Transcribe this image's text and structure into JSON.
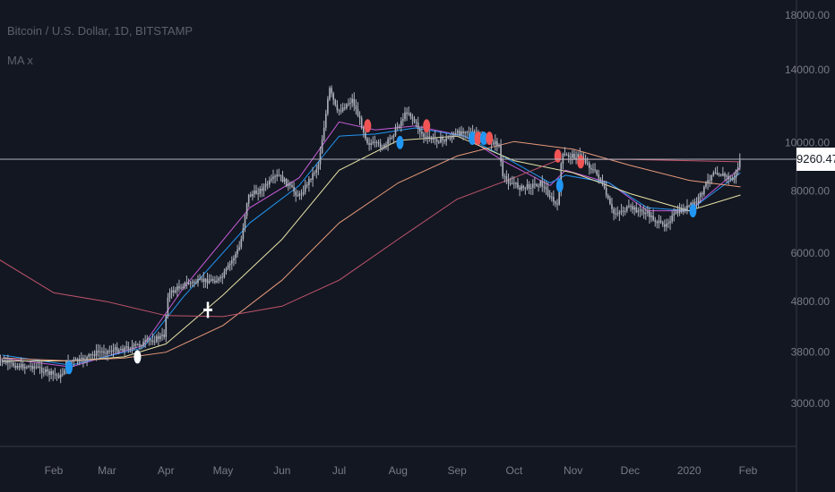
{
  "header": {
    "symbol": "Bitcoin / U.S. Dollar, 1D, BITSTAMP",
    "indicator": "MA x"
  },
  "current_price_label": "9260.47",
  "colors": {
    "background": "#131722",
    "candles": "#aeb2bd",
    "ma_fast": "#c45bd6",
    "ma_blue": "#2196f3",
    "ma_yellow": "#e6e2a5",
    "ma_orange": "#e89a7a",
    "ma_red": "#c0556c",
    "marker_red": "#f05454",
    "marker_blue": "#2196f3",
    "marker_white": "#ffffff",
    "price_line": "#b2b5be"
  },
  "chart_data": {
    "type": "line",
    "title": "Bitcoin / U.S. Dollar, 1D, BITSTAMP",
    "y_scale": "log",
    "ylim": [
      2400,
      21000
    ],
    "grid": false,
    "y_ticks": [
      "3000.00",
      "3800.00",
      "4800.00",
      "6000.00",
      "8000.00",
      "10000.00",
      "14000.00",
      "18000.00"
    ],
    "x_ticks": [
      "Feb",
      "Mar",
      "Apr",
      "May",
      "Jun",
      "Jul",
      "Aug",
      "Sep",
      "Oct",
      "Nov",
      "Dec",
      "2020",
      "Feb"
    ],
    "x_tick_dates": [
      "2019-02-01",
      "2019-03-01",
      "2019-04-01",
      "2019-05-01",
      "2019-06-01",
      "2019-07-01",
      "2019-08-01",
      "2019-09-01",
      "2019-10-01",
      "2019-11-01",
      "2019-12-01",
      "2020-01-01",
      "2020-02-01"
    ],
    "current_price": 9260.47,
    "price_series": {
      "name": "",
      "x": [
        "2019-01-01",
        "2019-01-08",
        "2019-01-15",
        "2019-01-22",
        "2019-01-29",
        "2019-02-05",
        "2019-02-08",
        "2019-02-15",
        "2019-02-24",
        "2019-03-01",
        "2019-03-15",
        "2019-03-31",
        "2019-04-02",
        "2019-04-10",
        "2019-04-20",
        "2019-04-30",
        "2019-05-10",
        "2019-05-14",
        "2019-05-20",
        "2019-05-30",
        "2019-06-10",
        "2019-06-20",
        "2019-06-26",
        "2019-06-30",
        "2019-07-08",
        "2019-07-16",
        "2019-07-25",
        "2019-08-06",
        "2019-08-15",
        "2019-08-25",
        "2019-09-05",
        "2019-09-15",
        "2019-09-23",
        "2019-09-25",
        "2019-10-05",
        "2019-10-15",
        "2019-10-24",
        "2019-10-26",
        "2019-11-05",
        "2019-11-15",
        "2019-11-22",
        "2019-12-01",
        "2019-12-10",
        "2019-12-18",
        "2019-12-25",
        "2020-01-05",
        "2020-01-14",
        "2020-01-24",
        "2020-01-28"
      ],
      "values": [
        3700,
        3600,
        3560,
        3560,
        3450,
        3400,
        3650,
        3650,
        3800,
        3820,
        3900,
        4100,
        4950,
        5200,
        5280,
        5320,
        6200,
        7800,
        8000,
        8600,
        7800,
        9000,
        12800,
        11500,
        12200,
        10000,
        9800,
        11600,
        10200,
        10100,
        10600,
        10200,
        9900,
        8500,
        8100,
        8300,
        7400,
        9400,
        9400,
        8500,
        7200,
        7400,
        7200,
        6800,
        7200,
        7600,
        8800,
        8400,
        9260
      ]
    },
    "series": [
      {
        "name": "",
        "color": "#c45bd6",
        "x": [
          "2019-01-05",
          "2019-02-10",
          "2019-03-20",
          "2019-04-10",
          "2019-05-15",
          "2019-06-10",
          "2019-07-01",
          "2019-07-20",
          "2019-08-10",
          "2019-09-05",
          "2019-09-25",
          "2019-10-20",
          "2019-10-28",
          "2019-11-20",
          "2019-12-10",
          "2020-01-01",
          "2020-01-28"
        ],
        "values": [
          3700,
          3550,
          3920,
          5100,
          7400,
          8500,
          11000,
          10600,
          10800,
          10300,
          9200,
          8200,
          8800,
          8300,
          7300,
          7300,
          8900
        ]
      },
      {
        "name": "",
        "color": "#2196f3",
        "x": [
          "2019-01-05",
          "2019-02-10",
          "2019-03-20",
          "2019-04-10",
          "2019-05-15",
          "2019-06-10",
          "2019-07-01",
          "2019-07-20",
          "2019-08-10",
          "2019-09-05",
          "2019-09-25",
          "2019-10-20",
          "2019-10-28",
          "2019-11-20",
          "2019-12-10",
          "2020-01-01",
          "2020-01-28"
        ],
        "values": [
          3750,
          3580,
          3880,
          4900,
          6900,
          8200,
          10300,
          10400,
          10700,
          10300,
          9400,
          8300,
          8600,
          8300,
          7400,
          7300,
          8700
        ]
      },
      {
        "name": "",
        "color": "#e6e2a5",
        "x": [
          "2019-01-05",
          "2019-02-10",
          "2019-03-10",
          "2019-04-01",
          "2019-05-01",
          "2019-06-01",
          "2019-07-01",
          "2019-08-01",
          "2019-09-01",
          "2019-10-01",
          "2019-11-01",
          "2019-12-01",
          "2020-01-01",
          "2020-01-28"
        ],
        "values": [
          3650,
          3650,
          3720,
          3950,
          4950,
          6400,
          8800,
          10100,
          10300,
          9200,
          8700,
          7900,
          7300,
          7850
        ]
      },
      {
        "name": "",
        "color": "#e89a7a",
        "x": [
          "2019-01-05",
          "2019-02-10",
          "2019-03-10",
          "2019-04-01",
          "2019-05-01",
          "2019-06-01",
          "2019-07-01",
          "2019-08-01",
          "2019-09-01",
          "2019-10-01",
          "2019-11-01",
          "2019-12-01",
          "2020-01-01",
          "2020-01-28"
        ],
        "values": [
          3700,
          3650,
          3700,
          3800,
          4300,
          5300,
          6900,
          8300,
          9400,
          10050,
          9700,
          9000,
          8400,
          8150
        ]
      },
      {
        "name": "",
        "color": "#c0556c",
        "x": [
          "2019-01-01",
          "2019-02-01",
          "2019-03-01",
          "2019-04-01",
          "2019-05-01",
          "2019-06-01",
          "2019-07-01",
          "2019-08-01",
          "2019-09-01",
          "2019-10-01",
          "2019-10-25",
          "2019-12-01",
          "2020-01-01",
          "2020-01-28"
        ],
        "values": [
          5900,
          5000,
          4800,
          4500,
          4480,
          4700,
          5300,
          6400,
          7700,
          8500,
          9250,
          9250,
          9200,
          9150
        ]
      }
    ],
    "markers": [
      {
        "x": "2019-01-02",
        "price": 3700,
        "type": "sell"
      },
      {
        "x": "2019-02-09",
        "price": 3540,
        "type": "buy"
      },
      {
        "x": "2019-03-17",
        "price": 3720,
        "type": "buy"
      },
      {
        "x": "2019-07-16",
        "price": 10800,
        "type": "sell"
      },
      {
        "x": "2019-08-02",
        "price": 10000,
        "type": "buy"
      },
      {
        "x": "2019-08-16",
        "price": 10800,
        "type": "sell"
      },
      {
        "x": "2019-09-09",
        "price": 10200,
        "type": "buy"
      },
      {
        "x": "2019-09-12",
        "price": 10200,
        "type": "sell"
      },
      {
        "x": "2019-09-15",
        "price": 10200,
        "type": "buy"
      },
      {
        "x": "2019-09-18",
        "price": 10200,
        "type": "sell"
      },
      {
        "x": "2019-10-24",
        "price": 9400,
        "type": "sell"
      },
      {
        "x": "2019-10-25",
        "price": 8200,
        "type": "buy"
      },
      {
        "x": "2019-11-05",
        "price": 9150,
        "type": "sell"
      },
      {
        "x": "2020-01-03",
        "price": 7300,
        "type": "buy"
      }
    ],
    "cross_marker": {
      "x": "2019-04-23",
      "price": 4620
    }
  }
}
